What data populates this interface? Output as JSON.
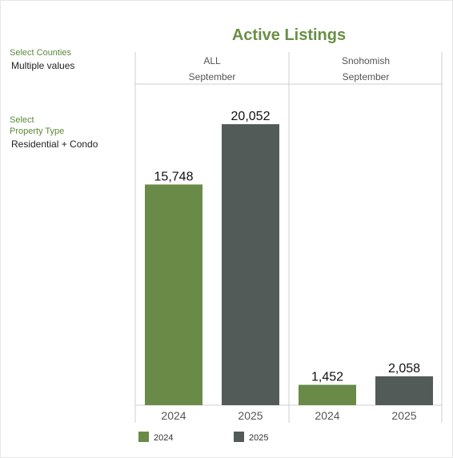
{
  "filters": {
    "counties": {
      "label": "Select Counties",
      "value": "Multiple values"
    },
    "property_type": {
      "label_line1": "Select",
      "label_line2": "Property Type",
      "value": "Residential + Condo"
    }
  },
  "colors": {
    "series_2024": "#6a8a47",
    "series_2025": "#525b58",
    "title": "#6a8f45",
    "filter_label": "#5c8a3a"
  },
  "chart_data": {
    "type": "bar",
    "title": "Active Listings",
    "categories": [
      "2024",
      "2025"
    ],
    "panels": [
      {
        "name": "ALL",
        "month": "September",
        "values": [
          15748,
          20052
        ],
        "labels": [
          "15,748",
          "20,052"
        ]
      },
      {
        "name": "Snohomish",
        "month": "September",
        "values": [
          1452,
          2058
        ],
        "labels": [
          "1,452",
          "2,058"
        ]
      }
    ],
    "series": [
      {
        "name": "2024",
        "color": "#6a8a47"
      },
      {
        "name": "2025",
        "color": "#525b58"
      }
    ],
    "ylim": [
      0,
      22000
    ],
    "grid": false,
    "legend": {
      "position": "bottom-left",
      "items": [
        "2024",
        "2025"
      ]
    }
  }
}
